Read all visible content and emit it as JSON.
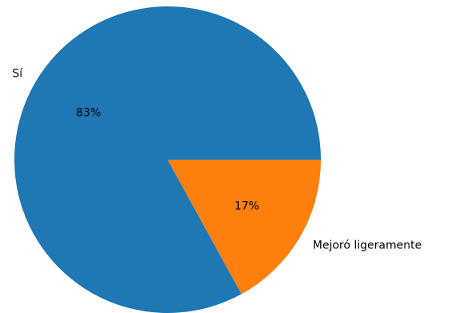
{
  "chart_data": {
    "type": "pie",
    "title": "",
    "start_angle_deg": 0,
    "direction": "counterclockwise",
    "slices": [
      {
        "label": "Sí",
        "value": 83,
        "pct_label": "83%",
        "color": "#1f77b4"
      },
      {
        "label": "Mejoró ligeramente",
        "value": 17,
        "pct_label": "17%",
        "color": "#ff7f0e"
      }
    ]
  }
}
